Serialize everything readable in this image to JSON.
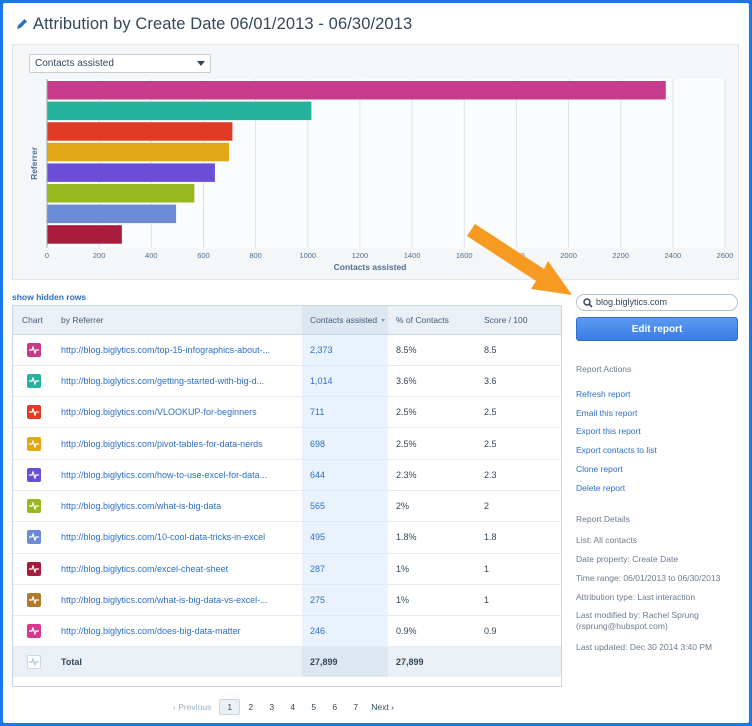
{
  "header": {
    "title": "Attribution by Create Date 06/01/2013 - 06/30/2013"
  },
  "metric_select": {
    "value": "Contacts assisted"
  },
  "chart_data": {
    "type": "bar",
    "orientation": "horizontal",
    "xlabel": "Contacts assisted",
    "ylabel": "Referrer",
    "xlim": [
      0,
      2600
    ],
    "xticks": [
      "0",
      "200",
      "400",
      "600",
      "800",
      "1000",
      "1200",
      "1400",
      "1600",
      "1800",
      "2000",
      "2200",
      "2400",
      "2600"
    ],
    "grid": true,
    "values": [
      2373,
      1014,
      711,
      698,
      644,
      565,
      495,
      287
    ],
    "colors": [
      "#c73b8c",
      "#25b39e",
      "#e03b24",
      "#e3a716",
      "#6a4fd6",
      "#97b91f",
      "#6c8bd6",
      "#a81b3c"
    ]
  },
  "show_hidden": "show hidden rows",
  "table": {
    "headers": {
      "chart": "Chart",
      "referrer": "by Referrer",
      "contacts": "Contacts assisted",
      "pct": "% of Contacts",
      "score": "Score / 100"
    },
    "rows": [
      {
        "referrer": "http://blog.biglytics.com/top-15-infographics-about-...",
        "contacts": "2,373",
        "pct": "8.5%",
        "score": "8.5",
        "color": "#c73b8c"
      },
      {
        "referrer": "http://blog.biglytics.com/getting-started-with-big-d...",
        "contacts": "1,014",
        "pct": "3.6%",
        "score": "3.6",
        "color": "#25b39e"
      },
      {
        "referrer": "http://blog.biglytics.com/VLOOKUP-for-beginners",
        "contacts": "711",
        "pct": "2.5%",
        "score": "2.5",
        "color": "#e03b24"
      },
      {
        "referrer": "http://blog.biglytics.com/pivot-tables-for-data-nerds",
        "contacts": "698",
        "pct": "2.5%",
        "score": "2.5",
        "color": "#e3a716"
      },
      {
        "referrer": "http://blog.biglytics.com/how-to-use-excel-for-data...",
        "contacts": "644",
        "pct": "2.3%",
        "score": "2.3",
        "color": "#6a4fd6"
      },
      {
        "referrer": "http://blog.biglytics.com/what-is-big-data",
        "contacts": "565",
        "pct": "2%",
        "score": "2",
        "color": "#97b91f"
      },
      {
        "referrer": "http://blog.biglytics.com/10-cool-data-tricks-in-excel",
        "contacts": "495",
        "pct": "1.8%",
        "score": "1.8",
        "color": "#6c8bd6"
      },
      {
        "referrer": "http://blog.biglytics.com/excel-cheat-sheet",
        "contacts": "287",
        "pct": "1%",
        "score": "1",
        "color": "#a81b3c"
      },
      {
        "referrer": "http://blog.biglytics.com/what-is-big-data-vs-excel-...",
        "contacts": "275",
        "pct": "1%",
        "score": "1",
        "color": "#b07a2e"
      },
      {
        "referrer": "http://blog.biglytics.com/does-big-data-matter",
        "contacts": "246",
        "pct": "0.9%",
        "score": "0.9",
        "color": "#d6398f"
      }
    ],
    "total": {
      "label": "Total",
      "contacts": "27,899",
      "pct": "27,899"
    }
  },
  "pagination": {
    "prev": "Previous",
    "pages": [
      "1",
      "2",
      "3",
      "4",
      "5",
      "6",
      "7"
    ],
    "active": "1",
    "next": "Next"
  },
  "sidebar": {
    "search_value": "blog.biglytics.com",
    "edit_button": "Edit report",
    "actions_title": "Report Actions",
    "actions": [
      "Refresh report",
      "Email this report",
      "Export this report",
      "Export contacts to list",
      "Clone report",
      "Delete report"
    ],
    "details_title": "Report Details",
    "details": [
      "List: All contacts",
      "Date property: Create Date",
      "Time range: 06/01/2013 to 06/30/2013",
      "Attribution type: Last interaction",
      "Last modified by: Rachel Sprung (rsprung@hubspot.com)",
      "Last updated: Dec 30 2014 3:40 PM"
    ]
  }
}
